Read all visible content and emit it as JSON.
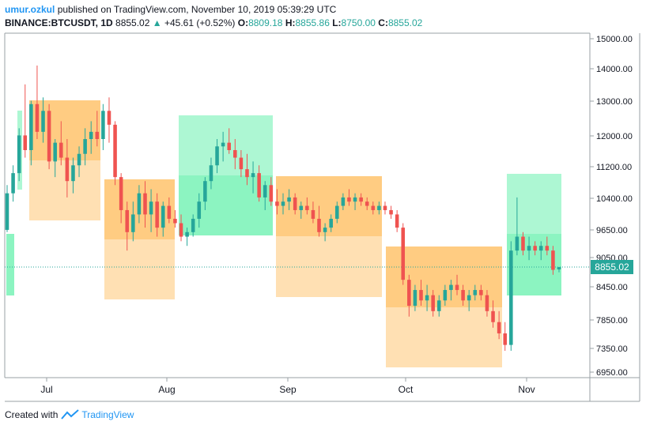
{
  "header": {
    "username": "umur.ozkul",
    "published_text": "published on TradingView.com, November 10, 2019 05:39:29 UTC",
    "symbol": "BINANCE:BTCUSDT, 1D",
    "last_price": "8855.02",
    "change": "+45.61 (+0.52%)",
    "open_label": "O:",
    "open": "8809.18",
    "high_label": "H:",
    "high": "8855.86",
    "low_label": "L:",
    "low": "8750.00",
    "close_label": "C:",
    "close": "8855.02"
  },
  "footer": {
    "created_with": "Created with",
    "brand": "TradingView"
  },
  "colors": {
    "up": "#26a69a",
    "down": "#ef5350",
    "orange_box": "#ffb74d",
    "green_box": "#69f0ae",
    "price_line": "#26a69a",
    "accent": "#2196f3"
  },
  "chart_data": {
    "type": "candlestick",
    "y_axis_scale": "log",
    "y_ticks": [
      "15000.00",
      "14000.00",
      "13000.00",
      "12000.00",
      "11200.00",
      "10400.00",
      "9650.00",
      "9050.00",
      "8450.00",
      "7850.00",
      "7350.00",
      "6950.00"
    ],
    "x_ticks": [
      "Jul",
      "Aug",
      "Sep",
      "Oct",
      "Nov"
    ],
    "price_label": "8855.02",
    "ohlc_sample_note_free": true,
    "candles": [
      [
        9650,
        10700,
        9600,
        10500
      ],
      [
        10500,
        11200,
        10300,
        11000
      ],
      [
        11000,
        12200,
        10800,
        12000
      ],
      [
        12000,
        13500,
        11400,
        11600
      ],
      [
        11600,
        13000,
        11200,
        12900
      ],
      [
        12900,
        14100,
        11900,
        12100
      ],
      [
        12100,
        13100,
        11800,
        12700
      ],
      [
        12700,
        12900,
        11100,
        11300
      ],
      [
        11300,
        11900,
        10900,
        11800
      ],
      [
        11800,
        12400,
        11200,
        11400
      ],
      [
        11400,
        11900,
        10400,
        10800
      ],
      [
        10800,
        11400,
        10500,
        11200
      ],
      [
        11200,
        11700,
        10900,
        11500
      ],
      [
        11500,
        12200,
        11200,
        11900
      ],
      [
        11900,
        12400,
        11500,
        12100
      ],
      [
        12100,
        12700,
        11700,
        11900
      ],
      [
        11900,
        12900,
        11600,
        12700
      ],
      [
        12700,
        13100,
        11800,
        12300
      ],
      [
        12300,
        12400,
        10700,
        10900
      ],
      [
        10900,
        11000,
        9800,
        10100
      ],
      [
        10100,
        10300,
        9200,
        9600
      ],
      [
        9600,
        10300,
        9400,
        10000
      ],
      [
        10000,
        10700,
        9800,
        10500
      ],
      [
        10500,
        10800,
        9700,
        10000
      ],
      [
        10000,
        10600,
        9600,
        10300
      ],
      [
        10300,
        10500,
        9500,
        9700
      ],
      [
        9700,
        10300,
        9500,
        10200
      ],
      [
        10200,
        10400,
        9800,
        9900
      ],
      [
        9900,
        10100,
        9700,
        9800
      ],
      [
        9800,
        10000,
        9400,
        9500
      ],
      [
        9500,
        9700,
        9300,
        9600
      ],
      [
        9600,
        10000,
        9500,
        9900
      ],
      [
        9900,
        10500,
        9700,
        10300
      ],
      [
        10300,
        10900,
        10100,
        10800
      ],
      [
        10800,
        11400,
        10600,
        11200
      ],
      [
        11200,
        11900,
        11000,
        11700
      ],
      [
        11700,
        12100,
        11300,
        11800
      ],
      [
        11800,
        12200,
        11500,
        11600
      ],
      [
        11600,
        11900,
        11100,
        11400
      ],
      [
        11400,
        11600,
        10900,
        11100
      ],
      [
        11100,
        11500,
        10700,
        10900
      ],
      [
        10900,
        11300,
        10500,
        11000
      ],
      [
        11000,
        11200,
        10300,
        10400
      ],
      [
        10400,
        10800,
        10100,
        10700
      ],
      [
        10700,
        10900,
        10200,
        10300
      ],
      [
        10300,
        10600,
        10000,
        10200
      ],
      [
        10200,
        10500,
        10000,
        10300
      ],
      [
        10300,
        10600,
        10100,
        10400
      ],
      [
        10400,
        10500,
        10000,
        10100
      ],
      [
        10100,
        10300,
        9900,
        10200
      ],
      [
        10200,
        10400,
        10000,
        10100
      ],
      [
        10100,
        10300,
        9800,
        9900
      ],
      [
        9900,
        10200,
        9500,
        9600
      ],
      [
        9600,
        9800,
        9400,
        9700
      ],
      [
        9700,
        10000,
        9600,
        9900
      ],
      [
        9900,
        10300,
        9800,
        10200
      ],
      [
        10200,
        10500,
        10100,
        10400
      ],
      [
        10400,
        10600,
        10200,
        10300
      ],
      [
        10300,
        10500,
        10100,
        10400
      ],
      [
        10400,
        10500,
        10200,
        10300
      ],
      [
        10300,
        10400,
        10100,
        10200
      ],
      [
        10200,
        10300,
        10000,
        10100
      ],
      [
        10100,
        10300,
        10000,
        10200
      ],
      [
        10200,
        10300,
        10000,
        10100
      ],
      [
        10100,
        10200,
        9900,
        10000
      ],
      [
        10000,
        10100,
        9600,
        9700
      ],
      [
        9700,
        9800,
        8500,
        8600
      ],
      [
        8600,
        8700,
        7900,
        8100
      ],
      [
        8100,
        8500,
        8000,
        8400
      ],
      [
        8400,
        8600,
        8100,
        8200
      ],
      [
        8200,
        8500,
        8000,
        8300
      ],
      [
        8300,
        8400,
        7900,
        8000
      ],
      [
        8000,
        8300,
        7900,
        8200
      ],
      [
        8200,
        8500,
        8100,
        8400
      ],
      [
        8400,
        8600,
        8200,
        8500
      ],
      [
        8500,
        8700,
        8300,
        8400
      ],
      [
        8400,
        8500,
        8100,
        8200
      ],
      [
        8200,
        8400,
        8000,
        8300
      ],
      [
        8300,
        8500,
        8200,
        8400
      ],
      [
        8400,
        8500,
        8200,
        8300
      ],
      [
        8300,
        8400,
        7900,
        8000
      ],
      [
        8000,
        8200,
        7700,
        7800
      ],
      [
        7800,
        8000,
        7500,
        7600
      ],
      [
        7600,
        7800,
        7300,
        7400
      ],
      [
        7400,
        9400,
        7300,
        9200
      ],
      [
        9200,
        10400,
        9100,
        9500
      ],
      [
        9500,
        9600,
        9100,
        9200
      ],
      [
        9200,
        9500,
        9000,
        9300
      ],
      [
        9300,
        9400,
        9100,
        9200
      ],
      [
        9200,
        9400,
        9000,
        9300
      ],
      [
        9300,
        9500,
        9100,
        9200
      ],
      [
        9200,
        9300,
        8700,
        8800
      ],
      [
        8809.18,
        8855.86,
        8750,
        8855.02
      ]
    ]
  }
}
